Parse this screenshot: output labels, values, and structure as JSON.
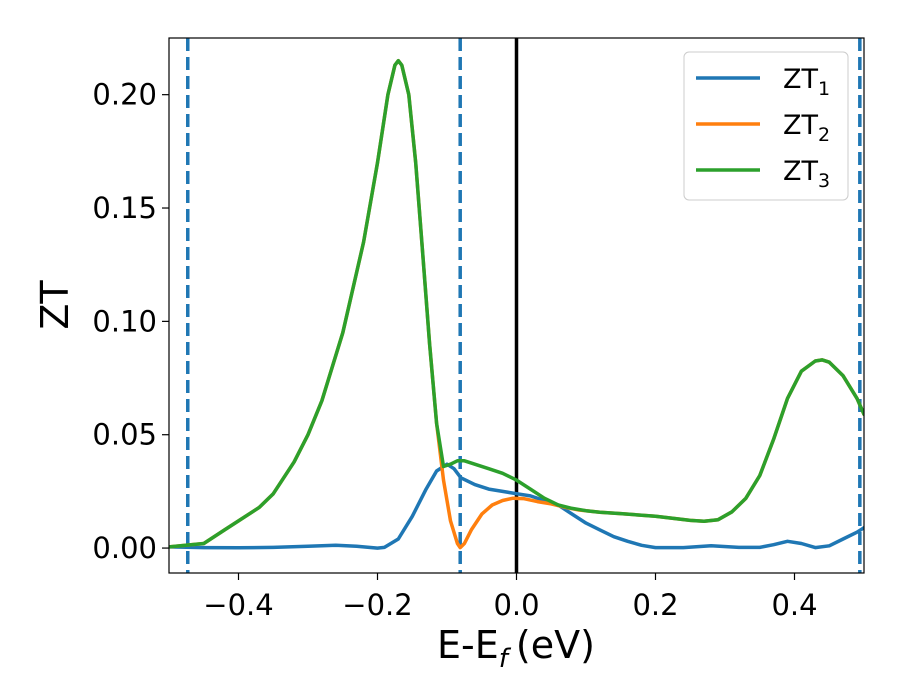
{
  "chart_data": {
    "type": "line",
    "xlabel": "E-E",
    "xlabel_sub": "f",
    "xlabel_unit": "(eV)",
    "ylabel": "ZT",
    "xlim": [
      -0.5,
      0.5
    ],
    "ylim": [
      -0.011,
      0.225
    ],
    "xticks": [
      -0.4,
      -0.2,
      0.0,
      0.2,
      0.4
    ],
    "xtick_labels": [
      "−0.4",
      "−0.2",
      "0.0",
      "0.2",
      "0.4"
    ],
    "yticks": [
      0.0,
      0.05,
      0.1,
      0.15,
      0.2
    ],
    "ytick_labels": [
      "0.00",
      "0.05",
      "0.10",
      "0.15",
      "0.20"
    ],
    "legend_position": "top-right",
    "vlines": [
      {
        "x": -0.473,
        "style": "dashed",
        "color": "#1f77b4"
      },
      {
        "x": -0.081,
        "style": "dashed",
        "color": "#1f77b4"
      },
      {
        "x": 0.0,
        "style": "solid",
        "color": "#000000"
      },
      {
        "x": 0.494,
        "style": "dashed",
        "color": "#1f77b4"
      }
    ],
    "series": [
      {
        "name": "ZT",
        "name_sub": "1",
        "color": "#1f77b4",
        "points": [
          [
            -0.5,
            0.0005
          ],
          [
            -0.45,
            0.0002
          ],
          [
            -0.4,
            0.0001
          ],
          [
            -0.35,
            0.0003
          ],
          [
            -0.3,
            0.0008
          ],
          [
            -0.26,
            0.0012
          ],
          [
            -0.23,
            0.0008
          ],
          [
            -0.2,
            0.0
          ],
          [
            -0.19,
            0.0003
          ],
          [
            -0.17,
            0.004
          ],
          [
            -0.15,
            0.014
          ],
          [
            -0.13,
            0.026
          ],
          [
            -0.115,
            0.034
          ],
          [
            -0.1,
            0.037
          ],
          [
            -0.09,
            0.035
          ],
          [
            -0.08,
            0.031
          ],
          [
            -0.06,
            0.028
          ],
          [
            -0.04,
            0.026
          ],
          [
            -0.02,
            0.025
          ],
          [
            0.0,
            0.024
          ],
          [
            0.02,
            0.023
          ],
          [
            0.04,
            0.021
          ],
          [
            0.06,
            0.019
          ],
          [
            0.08,
            0.015
          ],
          [
            0.1,
            0.011
          ],
          [
            0.12,
            0.008
          ],
          [
            0.14,
            0.005
          ],
          [
            0.16,
            0.003
          ],
          [
            0.18,
            0.0012
          ],
          [
            0.2,
            0.0002
          ],
          [
            0.24,
            0.0002
          ],
          [
            0.28,
            0.001
          ],
          [
            0.32,
            0.0003
          ],
          [
            0.35,
            0.0003
          ],
          [
            0.37,
            0.0015
          ],
          [
            0.39,
            0.003
          ],
          [
            0.41,
            0.002
          ],
          [
            0.43,
            0.0002
          ],
          [
            0.45,
            0.001
          ],
          [
            0.47,
            0.004
          ],
          [
            0.49,
            0.007
          ],
          [
            0.5,
            0.009
          ]
        ]
      },
      {
        "name": "ZT",
        "name_sub": "2",
        "color": "#ff7f0e",
        "points": [
          [
            -0.5,
            0.0005
          ],
          [
            -0.45,
            0.002
          ],
          [
            -0.42,
            0.008
          ],
          [
            -0.4,
            0.012
          ],
          [
            -0.37,
            0.018
          ],
          [
            -0.35,
            0.024
          ],
          [
            -0.32,
            0.038
          ],
          [
            -0.3,
            0.05
          ],
          [
            -0.28,
            0.065
          ],
          [
            -0.25,
            0.095
          ],
          [
            -0.22,
            0.135
          ],
          [
            -0.2,
            0.17
          ],
          [
            -0.185,
            0.2
          ],
          [
            -0.175,
            0.213
          ],
          [
            -0.17,
            0.215
          ],
          [
            -0.165,
            0.213
          ],
          [
            -0.155,
            0.2
          ],
          [
            -0.145,
            0.17
          ],
          [
            -0.135,
            0.13
          ],
          [
            -0.125,
            0.09
          ],
          [
            -0.115,
            0.055
          ],
          [
            -0.105,
            0.03
          ],
          [
            -0.095,
            0.012
          ],
          [
            -0.085,
            0.002
          ],
          [
            -0.081,
            0.0002
          ],
          [
            -0.075,
            0.002
          ],
          [
            -0.065,
            0.008
          ],
          [
            -0.05,
            0.015
          ],
          [
            -0.035,
            0.019
          ],
          [
            -0.02,
            0.021
          ],
          [
            -0.005,
            0.022
          ],
          [
            0.01,
            0.0218
          ],
          [
            0.03,
            0.0205
          ],
          [
            0.05,
            0.0195
          ],
          [
            0.07,
            0.018
          ],
          [
            0.09,
            0.0168
          ],
          [
            0.12,
            0.0158
          ],
          [
            0.15,
            0.0152
          ],
          [
            0.2,
            0.014
          ],
          [
            0.25,
            0.0122
          ],
          [
            0.27,
            0.0118
          ],
          [
            0.29,
            0.0125
          ],
          [
            0.31,
            0.016
          ],
          [
            0.33,
            0.022
          ],
          [
            0.35,
            0.032
          ],
          [
            0.37,
            0.048
          ],
          [
            0.39,
            0.066
          ],
          [
            0.41,
            0.078
          ],
          [
            0.43,
            0.0825
          ],
          [
            0.44,
            0.083
          ],
          [
            0.45,
            0.082
          ],
          [
            0.47,
            0.076
          ],
          [
            0.49,
            0.066
          ],
          [
            0.5,
            0.059
          ]
        ]
      },
      {
        "name": "ZT",
        "name_sub": "3",
        "color": "#2ca02c",
        "points": [
          [
            -0.5,
            0.0005
          ],
          [
            -0.45,
            0.002
          ],
          [
            -0.42,
            0.008
          ],
          [
            -0.4,
            0.012
          ],
          [
            -0.37,
            0.018
          ],
          [
            -0.35,
            0.024
          ],
          [
            -0.32,
            0.038
          ],
          [
            -0.3,
            0.05
          ],
          [
            -0.28,
            0.065
          ],
          [
            -0.25,
            0.095
          ],
          [
            -0.22,
            0.135
          ],
          [
            -0.2,
            0.17
          ],
          [
            -0.185,
            0.2
          ],
          [
            -0.175,
            0.213
          ],
          [
            -0.17,
            0.215
          ],
          [
            -0.165,
            0.213
          ],
          [
            -0.155,
            0.2
          ],
          [
            -0.145,
            0.17
          ],
          [
            -0.135,
            0.13
          ],
          [
            -0.125,
            0.09
          ],
          [
            -0.115,
            0.055
          ],
          [
            -0.105,
            0.036
          ],
          [
            -0.095,
            0.037
          ],
          [
            -0.085,
            0.0385
          ],
          [
            -0.075,
            0.0385
          ],
          [
            -0.06,
            0.037
          ],
          [
            -0.04,
            0.035
          ],
          [
            -0.02,
            0.033
          ],
          [
            0.0,
            0.03
          ],
          [
            0.02,
            0.026
          ],
          [
            0.04,
            0.022
          ],
          [
            0.06,
            0.019
          ],
          [
            0.08,
            0.0175
          ],
          [
            0.1,
            0.0165
          ],
          [
            0.12,
            0.0158
          ],
          [
            0.15,
            0.0152
          ],
          [
            0.2,
            0.014
          ],
          [
            0.25,
            0.0122
          ],
          [
            0.27,
            0.0118
          ],
          [
            0.29,
            0.0125
          ],
          [
            0.31,
            0.016
          ],
          [
            0.33,
            0.022
          ],
          [
            0.35,
            0.032
          ],
          [
            0.37,
            0.048
          ],
          [
            0.39,
            0.066
          ],
          [
            0.41,
            0.078
          ],
          [
            0.43,
            0.0825
          ],
          [
            0.44,
            0.083
          ],
          [
            0.45,
            0.082
          ],
          [
            0.47,
            0.076
          ],
          [
            0.49,
            0.066
          ],
          [
            0.5,
            0.059
          ]
        ]
      }
    ]
  }
}
